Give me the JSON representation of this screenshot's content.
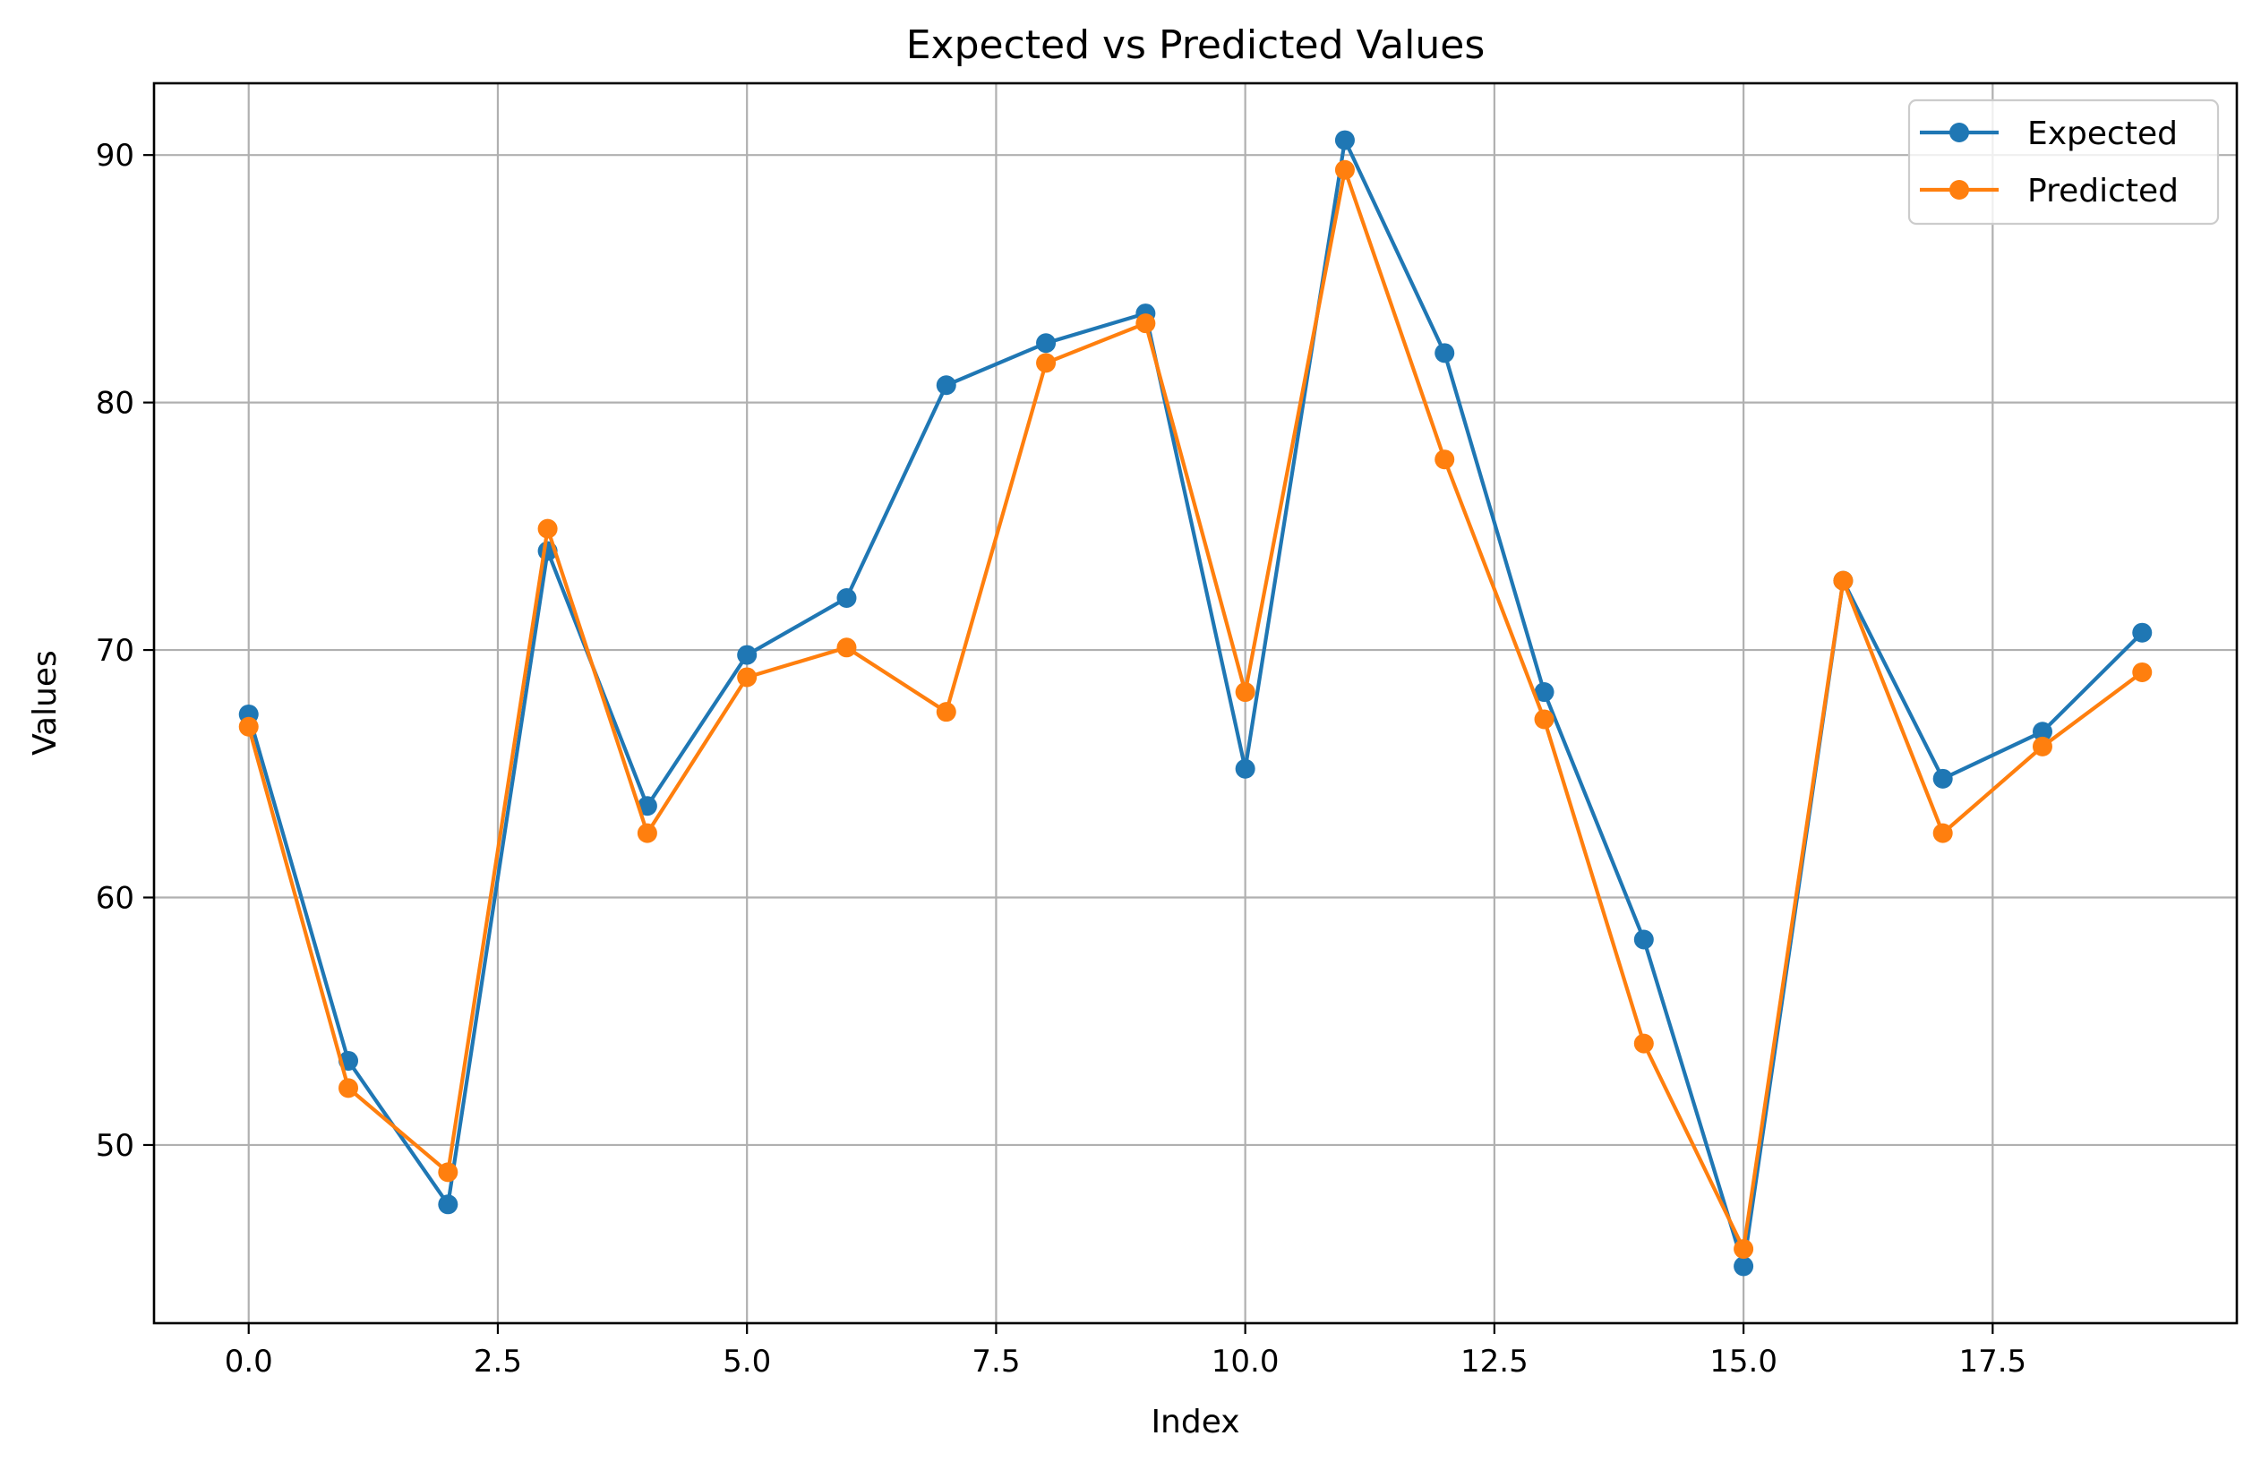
{
  "chart_data": {
    "type": "line",
    "title": "Expected vs Predicted Values",
    "xlabel": "Index",
    "ylabel": "Values",
    "x": [
      0,
      1,
      2,
      3,
      4,
      5,
      6,
      7,
      8,
      9,
      10,
      11,
      12,
      13,
      14,
      15,
      16,
      17,
      18,
      19
    ],
    "series": [
      {
        "name": "Expected",
        "color": "#1f77b4",
        "marker": "circle",
        "values": [
          67.4,
          53.4,
          47.6,
          74.0,
          63.7,
          69.8,
          72.1,
          80.7,
          82.4,
          83.6,
          65.2,
          90.6,
          82.0,
          68.3,
          58.3,
          45.1,
          72.8,
          64.8,
          66.7,
          70.7
        ]
      },
      {
        "name": "Predicted",
        "color": "#ff7f0e",
        "marker": "circle",
        "values": [
          66.9,
          52.3,
          48.9,
          74.9,
          62.6,
          68.9,
          70.1,
          67.5,
          81.6,
          83.2,
          68.3,
          89.4,
          77.7,
          67.2,
          54.1,
          45.8,
          72.8,
          62.6,
          66.1,
          69.1
        ]
      }
    ],
    "xlim": [
      -0.95,
      19.95
    ],
    "ylim": [
      42.8,
      92.9
    ],
    "xticks": [
      0.0,
      2.5,
      5.0,
      7.5,
      10.0,
      12.5,
      15.0,
      17.5
    ],
    "xtick_labels": [
      "0.0",
      "2.5",
      "5.0",
      "7.5",
      "10.0",
      "12.5",
      "15.0",
      "17.5"
    ],
    "yticks": [
      50,
      60,
      70,
      80,
      90
    ],
    "ytick_labels": [
      "50",
      "60",
      "70",
      "80",
      "90"
    ],
    "grid": true,
    "legend_position": "upper right"
  }
}
